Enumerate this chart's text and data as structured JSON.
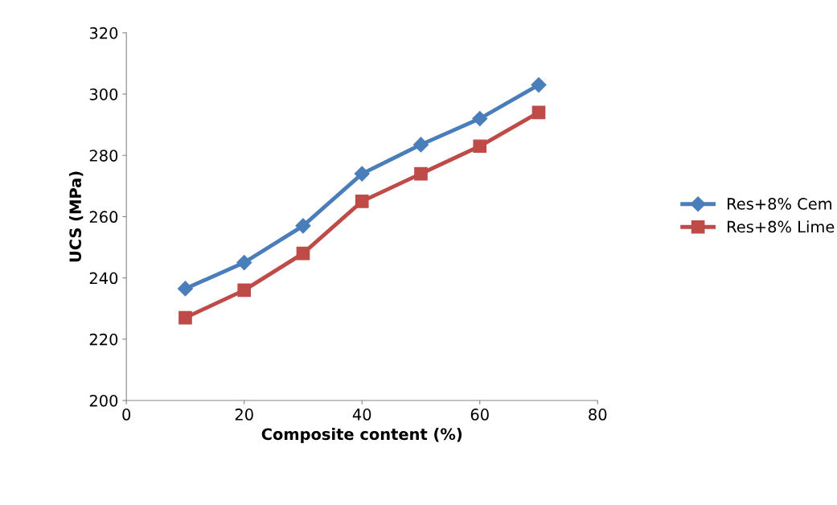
{
  "chart_data": {
    "type": "line",
    "xlabel": "Composite content (%)",
    "ylabel": "UCS (MPa)",
    "x": [
      10,
      20,
      30,
      40,
      50,
      60,
      70
    ],
    "series": [
      {
        "name": "Res+8% Cem",
        "color": "#4a7ebb",
        "marker": "diamond",
        "values": [
          236.5,
          245,
          257,
          274,
          283.5,
          292,
          303
        ]
      },
      {
        "name": "Res+8% Lime",
        "color": "#be4b48",
        "marker": "square",
        "values": [
          227,
          236,
          248,
          265,
          274,
          283,
          294
        ]
      }
    ],
    "xlim": [
      0,
      80
    ],
    "xticks": [
      0,
      20,
      40,
      60,
      80
    ],
    "ylim": [
      200,
      320
    ],
    "yticks": [
      200,
      220,
      240,
      260,
      280,
      300,
      320
    ],
    "grid": false,
    "legend": "right",
    "line_style": "solid"
  }
}
